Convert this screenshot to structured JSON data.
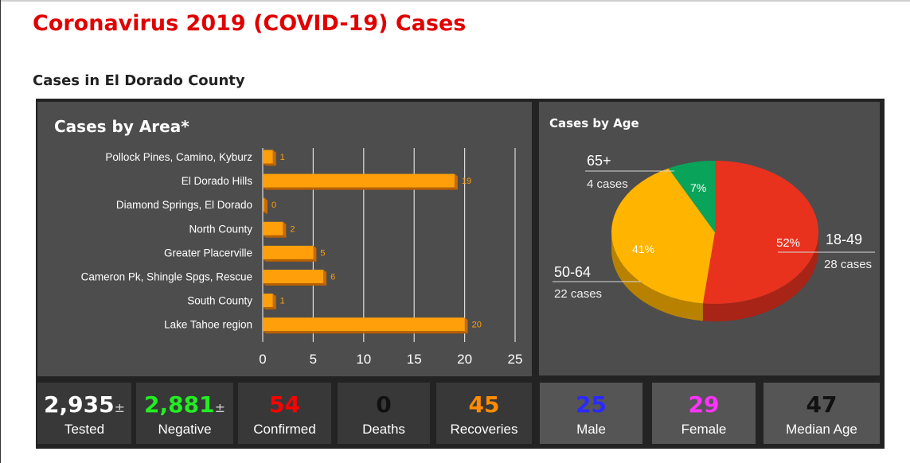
{
  "page_title": "Coronavirus 2019 (COVID-19) Cases",
  "subtitle": "Cases in El Dorado County",
  "chart_data": [
    {
      "type": "bar",
      "orientation": "horizontal",
      "title": "Cases by Area*",
      "categories": [
        "Pollock Pines, Camino, Kyburz",
        "El Dorado Hills",
        "Diamond Springs, El Dorado",
        "North County",
        "Greater Placerville",
        "Cameron Pk, Shingle Spgs, Rescue",
        "South County",
        "Lake Tahoe region"
      ],
      "values": [
        1,
        19,
        0,
        2,
        5,
        6,
        1,
        20
      ],
      "xlim": [
        0,
        25
      ],
      "xticks": [
        0,
        5,
        10,
        15,
        20,
        25
      ],
      "grid": true,
      "bar_color": "#ff9f0a"
    },
    {
      "type": "pie",
      "title": "Cases by Age",
      "slices": [
        {
          "label": "18-49",
          "percent": "52%",
          "cases": 28,
          "cases_label": "28 cases",
          "color": "#e8321e"
        },
        {
          "label": "50-64",
          "percent": "41%",
          "cases": 22,
          "cases_label": "22 cases",
          "color": "#ffb400"
        },
        {
          "label": "65+",
          "percent": "7%",
          "cases": 4,
          "cases_label": "4 cases",
          "color": "#0aa35a"
        }
      ]
    }
  ],
  "stats": [
    {
      "value": "2,935",
      "suffix": "±",
      "label": "Tested",
      "color": "#ffffff"
    },
    {
      "value": "2,881",
      "suffix": "±",
      "label": "Negative",
      "color": "#22ee22"
    },
    {
      "value": "54",
      "suffix": "",
      "label": "Confirmed",
      "color": "#ff0000"
    },
    {
      "value": "0",
      "suffix": "",
      "label": "Deaths",
      "color": "#111111"
    },
    {
      "value": "45",
      "suffix": "",
      "label": "Recoveries",
      "color": "#ff8c00"
    },
    {
      "value": "25",
      "suffix": "",
      "label": "Male",
      "color": "#2a2aff"
    },
    {
      "value": "29",
      "suffix": "",
      "label": "Female",
      "color": "#ff33ff"
    },
    {
      "value": "47",
      "suffix": "",
      "label": "Median Age",
      "color": "#111111"
    }
  ]
}
